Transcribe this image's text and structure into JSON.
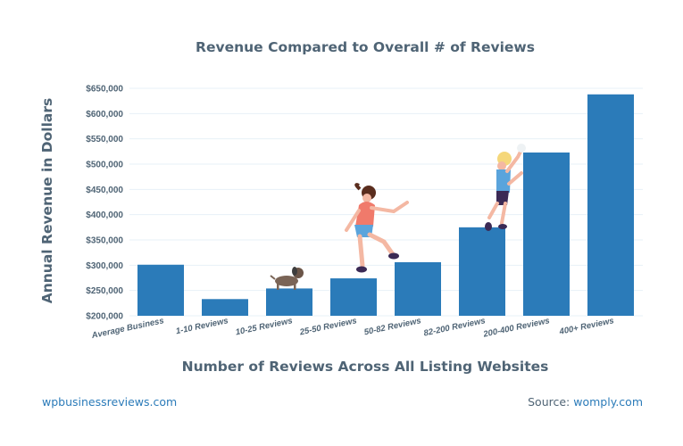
{
  "chart_data": {
    "type": "bar",
    "title": "Revenue Compared to Overall # of Reviews",
    "xlabel": "Number of Reviews Across All Listing Websites",
    "ylabel": "Annual Revenue in Dollars",
    "categories": [
      "Average Business",
      "1-10 Reviews",
      "10-25 Reviews",
      "25-50 Reviews",
      "50-82 Reviews",
      "82-200 Reviews",
      "200-400 Reviews",
      "400+ Reviews"
    ],
    "values": [
      301000,
      233000,
      254000,
      274000,
      306000,
      375000,
      523000,
      638000
    ],
    "ylim": [
      200000,
      650000
    ],
    "yticks": [
      200000,
      250000,
      300000,
      350000,
      400000,
      450000,
      500000,
      550000,
      600000,
      650000
    ],
    "ytick_labels": [
      "$200,000",
      "$250,000",
      "$300,000",
      "$350,000",
      "$400,000",
      "$450,000",
      "$500,000",
      "$550,000",
      "$600,000",
      "$650,000"
    ],
    "grid": true,
    "bar_color": "#2b7bb9"
  },
  "footer": {
    "left": "wpbusinessreviews.com",
    "source_prefix": "Source:",
    "source_name": "womply.com"
  },
  "colors": {
    "text": "#4f6475",
    "accent": "#2b7bb9",
    "grid": "#e7f1f7"
  }
}
